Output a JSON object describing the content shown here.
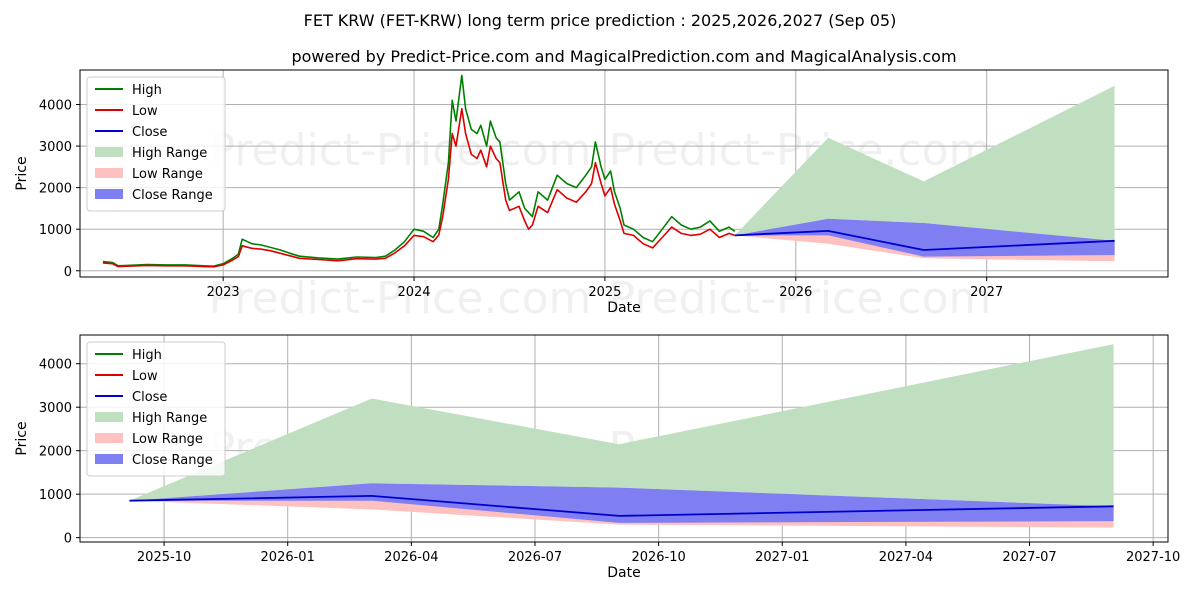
{
  "title": "FET KRW (FET-KRW) long term price prediction : 2025,2026,2027 (Sep 05)",
  "subtitle": "powered by Predict-Price.com and MagicalPrediction.com and MagicalAnalysis.com",
  "watermark": "Predict-Price.com",
  "colors": {
    "high": "#008000",
    "low": "#dd0000",
    "close": "#0000cc",
    "high_range": "#c0dfc0",
    "low_range": "#ffc0c0",
    "close_range": "#7f7ff2",
    "grid": "#b0b0b0"
  },
  "chart_data": [
    {
      "type": "line",
      "name": "history-and-forecast",
      "xlabel": "Date",
      "ylabel": "Price",
      "xlim": [
        2022.25,
        2027.95
      ],
      "ylim": [
        -150,
        4830
      ],
      "grid": true,
      "legend_position": "top-left",
      "x_ticks": [
        {
          "value": 2023.0,
          "label": "2023"
        },
        {
          "value": 2024.0,
          "label": "2024"
        },
        {
          "value": 2025.0,
          "label": "2025"
        },
        {
          "value": 2026.0,
          "label": "2026"
        },
        {
          "value": 2027.0,
          "label": "2027"
        }
      ],
      "y_ticks": [
        {
          "value": 0,
          "label": "0"
        },
        {
          "value": 1000,
          "label": "1000"
        },
        {
          "value": 2000,
          "label": "2000"
        },
        {
          "value": 3000,
          "label": "3000"
        },
        {
          "value": 4000,
          "label": "4000"
        }
      ],
      "legend": [
        "High",
        "Low",
        "Close",
        "High Range",
        "Low Range",
        "Close Range"
      ],
      "history_high": {
        "x": [
          2022.37,
          2022.42,
          2022.45,
          2022.5,
          2022.6,
          2022.7,
          2022.8,
          2022.9,
          2022.95,
          2023.0,
          2023.05,
          2023.08,
          2023.1,
          2023.15,
          2023.2,
          2023.25,
          2023.3,
          2023.35,
          2023.4,
          2023.5,
          2023.6,
          2023.7,
          2023.8,
          2023.85,
          2023.9,
          2023.95,
          2024.0,
          2024.05,
          2024.1,
          2024.13,
          2024.15,
          2024.18,
          2024.2,
          2024.22,
          2024.25,
          2024.27,
          2024.3,
          2024.33,
          2024.35,
          2024.38,
          2024.4,
          2024.43,
          2024.45,
          2024.48,
          2024.5,
          2024.55,
          2024.58,
          2024.6,
          2024.62,
          2024.65,
          2024.7,
          2024.75,
          2024.8,
          2024.85,
          2024.9,
          2024.93,
          2024.95,
          2024.98,
          2025.0,
          2025.03,
          2025.05,
          2025.08,
          2025.1,
          2025.15,
          2025.2,
          2025.25,
          2025.3,
          2025.35,
          2025.4,
          2025.45,
          2025.5,
          2025.55,
          2025.6,
          2025.65,
          2025.68
        ],
        "y": [
          220,
          200,
          120,
          130,
          150,
          140,
          140,
          120,
          110,
          170,
          300,
          400,
          760,
          650,
          620,
          560,
          500,
          420,
          350,
          310,
          280,
          330,
          320,
          350,
          500,
          700,
          1000,
          950,
          800,
          1000,
          1600,
          2600,
          4100,
          3600,
          4700,
          3900,
          3400,
          3300,
          3500,
          3000,
          3600,
          3200,
          3100,
          2100,
          1700,
          1900,
          1500,
          1400,
          1300,
          1900,
          1700,
          2300,
          2100,
          2000,
          2300,
          2500,
          3100,
          2500,
          2200,
          2400,
          1900,
          1500,
          1100,
          1000,
          800,
          700,
          1000,
          1300,
          1100,
          1000,
          1050,
          1200,
          950,
          1050,
          950
        ]
      },
      "history_low": {
        "x": [
          2022.37,
          2022.42,
          2022.45,
          2022.5,
          2022.6,
          2022.7,
          2022.8,
          2022.9,
          2022.95,
          2023.0,
          2023.05,
          2023.08,
          2023.1,
          2023.15,
          2023.2,
          2023.25,
          2023.3,
          2023.35,
          2023.4,
          2023.5,
          2023.6,
          2023.7,
          2023.8,
          2023.85,
          2023.9,
          2023.95,
          2024.0,
          2024.05,
          2024.1,
          2024.13,
          2024.15,
          2024.18,
          2024.2,
          2024.22,
          2024.25,
          2024.27,
          2024.3,
          2024.33,
          2024.35,
          2024.38,
          2024.4,
          2024.43,
          2024.45,
          2024.48,
          2024.5,
          2024.55,
          2024.58,
          2024.6,
          2024.62,
          2024.65,
          2024.7,
          2024.75,
          2024.8,
          2024.85,
          2024.9,
          2024.93,
          2024.95,
          2024.98,
          2025.0,
          2025.03,
          2025.05,
          2025.08,
          2025.1,
          2025.15,
          2025.2,
          2025.25,
          2025.3,
          2025.35,
          2025.4,
          2025.45,
          2025.5,
          2025.55,
          2025.6,
          2025.65,
          2025.68
        ],
        "y": [
          190,
          170,
          100,
          110,
          130,
          120,
          120,
          100,
          95,
          140,
          260,
          340,
          600,
          540,
          520,
          480,
          420,
          360,
          300,
          270,
          240,
          290,
          280,
          300,
          430,
          600,
          850,
          820,
          700,
          860,
          1300,
          2200,
          3300,
          3000,
          3900,
          3300,
          2800,
          2700,
          2900,
          2500,
          3000,
          2700,
          2600,
          1700,
          1450,
          1550,
          1200,
          1000,
          1100,
          1550,
          1400,
          1950,
          1750,
          1650,
          1900,
          2100,
          2600,
          2100,
          1800,
          2000,
          1600,
          1200,
          900,
          850,
          650,
          550,
          800,
          1050,
          900,
          850,
          880,
          1000,
          800,
          900,
          850
        ]
      },
      "forecast_x": [
        2025.68,
        2026.17,
        2026.67,
        2027.67
      ],
      "forecast_close": [
        850,
        960,
        500,
        720
      ],
      "high_range": {
        "upper": [
          850,
          3200,
          2150,
          4450
        ],
        "lower": [
          850,
          1250,
          1150,
          720
        ]
      },
      "low_range": {
        "upper": [
          850,
          960,
          500,
          720
        ],
        "lower": [
          850,
          650,
          300,
          230
        ]
      },
      "close_range": {
        "upper": [
          850,
          1250,
          1150,
          720
        ],
        "lower": [
          850,
          850,
          340,
          380
        ]
      }
    },
    {
      "type": "line",
      "name": "forecast-zoom",
      "xlabel": "Date",
      "ylabel": "Price",
      "xlim": [
        2025.58,
        2027.78
      ],
      "ylim": [
        -100,
        4660
      ],
      "grid": true,
      "legend_position": "top-left",
      "x_ticks": [
        {
          "value": 2025.75,
          "label": "2025-10"
        },
        {
          "value": 2026.0,
          "label": "2026-01"
        },
        {
          "value": 2026.25,
          "label": "2026-04"
        },
        {
          "value": 2026.5,
          "label": "2026-07"
        },
        {
          "value": 2026.75,
          "label": "2026-10"
        },
        {
          "value": 2027.0,
          "label": "2027-01"
        },
        {
          "value": 2027.25,
          "label": "2027-04"
        },
        {
          "value": 2027.5,
          "label": "2027-07"
        },
        {
          "value": 2027.75,
          "label": "2027-10"
        }
      ],
      "y_ticks": [
        {
          "value": 0,
          "label": "0"
        },
        {
          "value": 1000,
          "label": "1000"
        },
        {
          "value": 2000,
          "label": "2000"
        },
        {
          "value": 3000,
          "label": "3000"
        },
        {
          "value": 4000,
          "label": "4000"
        }
      ],
      "legend": [
        "High",
        "Low",
        "Close",
        "High Range",
        "Low Range",
        "Close Range"
      ],
      "forecast_x": [
        2025.68,
        2026.17,
        2026.67,
        2027.67
      ],
      "forecast_close": [
        850,
        960,
        500,
        720
      ],
      "high_range": {
        "upper": [
          850,
          3200,
          2150,
          4450
        ],
        "lower": [
          850,
          1250,
          1150,
          720
        ]
      },
      "low_range": {
        "upper": [
          850,
          960,
          500,
          720
        ],
        "lower": [
          850,
          650,
          300,
          230
        ]
      },
      "close_range": {
        "upper": [
          850,
          1250,
          1150,
          720
        ],
        "lower": [
          850,
          850,
          340,
          380
        ]
      }
    }
  ]
}
